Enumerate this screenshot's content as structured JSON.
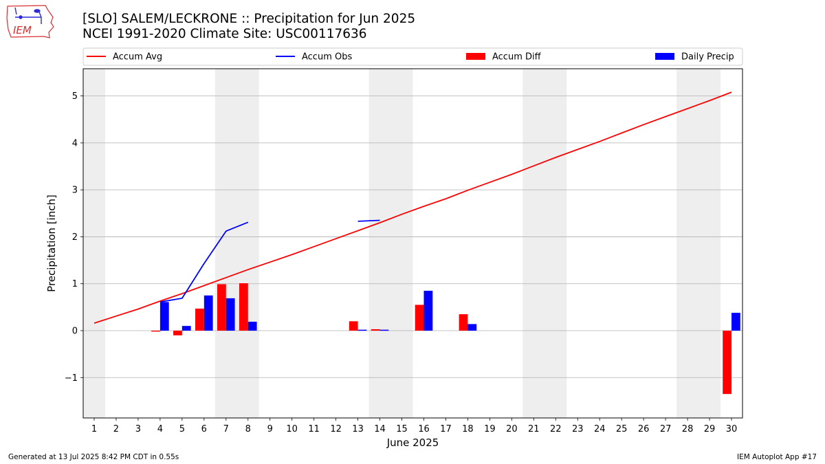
{
  "header": {
    "title": "[SLO] SALEM/LECKRONE :: Precipitation for Jun 2025",
    "subtitle": "NCEI 1991-2020 Climate Site: USC00117636",
    "logo_text": "IEM"
  },
  "footer": {
    "left": "Generated at 13 Jul 2025 8:42 PM CDT in 0.55s",
    "right": "IEM Autoplot App #17"
  },
  "chart_data": {
    "type": "bar",
    "xlabel": "June 2025",
    "ylabel": "Precipitation [inch]",
    "x": [
      1,
      2,
      3,
      4,
      5,
      6,
      7,
      8,
      9,
      10,
      11,
      12,
      13,
      14,
      15,
      16,
      17,
      18,
      19,
      20,
      21,
      22,
      23,
      24,
      25,
      26,
      27,
      28,
      29,
      30
    ],
    "xlim": [
      0.5,
      30.5
    ],
    "ylim": [
      -1.86,
      5.58
    ],
    "yticks": [
      -1,
      0,
      1,
      2,
      3,
      4,
      5
    ],
    "ytick_labels": [
      "−1",
      "0",
      "1",
      "2",
      "3",
      "4",
      "5"
    ],
    "grid": "horizontal",
    "legend_placement": "top, outside plot",
    "weekend_shading": [
      [
        0.5,
        1.5
      ],
      [
        6.5,
        8.5
      ],
      [
        13.5,
        15.5
      ],
      [
        20.5,
        22.5
      ],
      [
        27.5,
        29.5
      ]
    ],
    "colors": {
      "accum_avg": "#ff0000",
      "accum_obs": "#0000ff",
      "accum_diff": "#ff0000",
      "daily_precip": "#0000ff",
      "weekend": "#eeeeee",
      "grid": "#b0b0b0"
    },
    "series": [
      {
        "name": "Accum Avg",
        "kind": "line",
        "color": "#ff0000",
        "values": [
          0.16,
          0.31,
          0.46,
          0.63,
          0.79,
          0.96,
          1.13,
          1.3,
          1.46,
          1.62,
          1.79,
          1.96,
          2.13,
          2.3,
          2.48,
          2.65,
          2.81,
          2.99,
          3.16,
          3.33,
          3.51,
          3.69,
          3.86,
          4.03,
          4.21,
          4.39,
          4.56,
          4.73,
          4.9,
          5.08
        ]
      },
      {
        "name": "Accum Obs",
        "kind": "line",
        "color": "#0000ff",
        "values": [
          null,
          null,
          null,
          0.61,
          0.69,
          1.43,
          2.12,
          2.31,
          null,
          null,
          null,
          null,
          2.33,
          2.35,
          null,
          null,
          null,
          null,
          null,
          null,
          null,
          null,
          null,
          null,
          null,
          null,
          null,
          null,
          null,
          null
        ]
      },
      {
        "name": "Accum Diff",
        "kind": "bar",
        "color": "#ff0000",
        "values": [
          null,
          null,
          null,
          -0.02,
          -0.1,
          0.47,
          0.99,
          1.01,
          null,
          null,
          null,
          null,
          0.2,
          0.03,
          null,
          0.55,
          null,
          0.35,
          null,
          null,
          null,
          null,
          null,
          null,
          null,
          null,
          null,
          null,
          null,
          -1.35
        ]
      },
      {
        "name": "Daily Precip",
        "kind": "bar",
        "color": "#0000ff",
        "values": [
          null,
          null,
          null,
          0.61,
          0.1,
          0.75,
          0.69,
          0.19,
          null,
          null,
          null,
          null,
          0.02,
          0.02,
          null,
          0.85,
          null,
          0.14,
          null,
          null,
          null,
          null,
          null,
          null,
          null,
          null,
          null,
          null,
          null,
          0.38
        ]
      }
    ]
  }
}
